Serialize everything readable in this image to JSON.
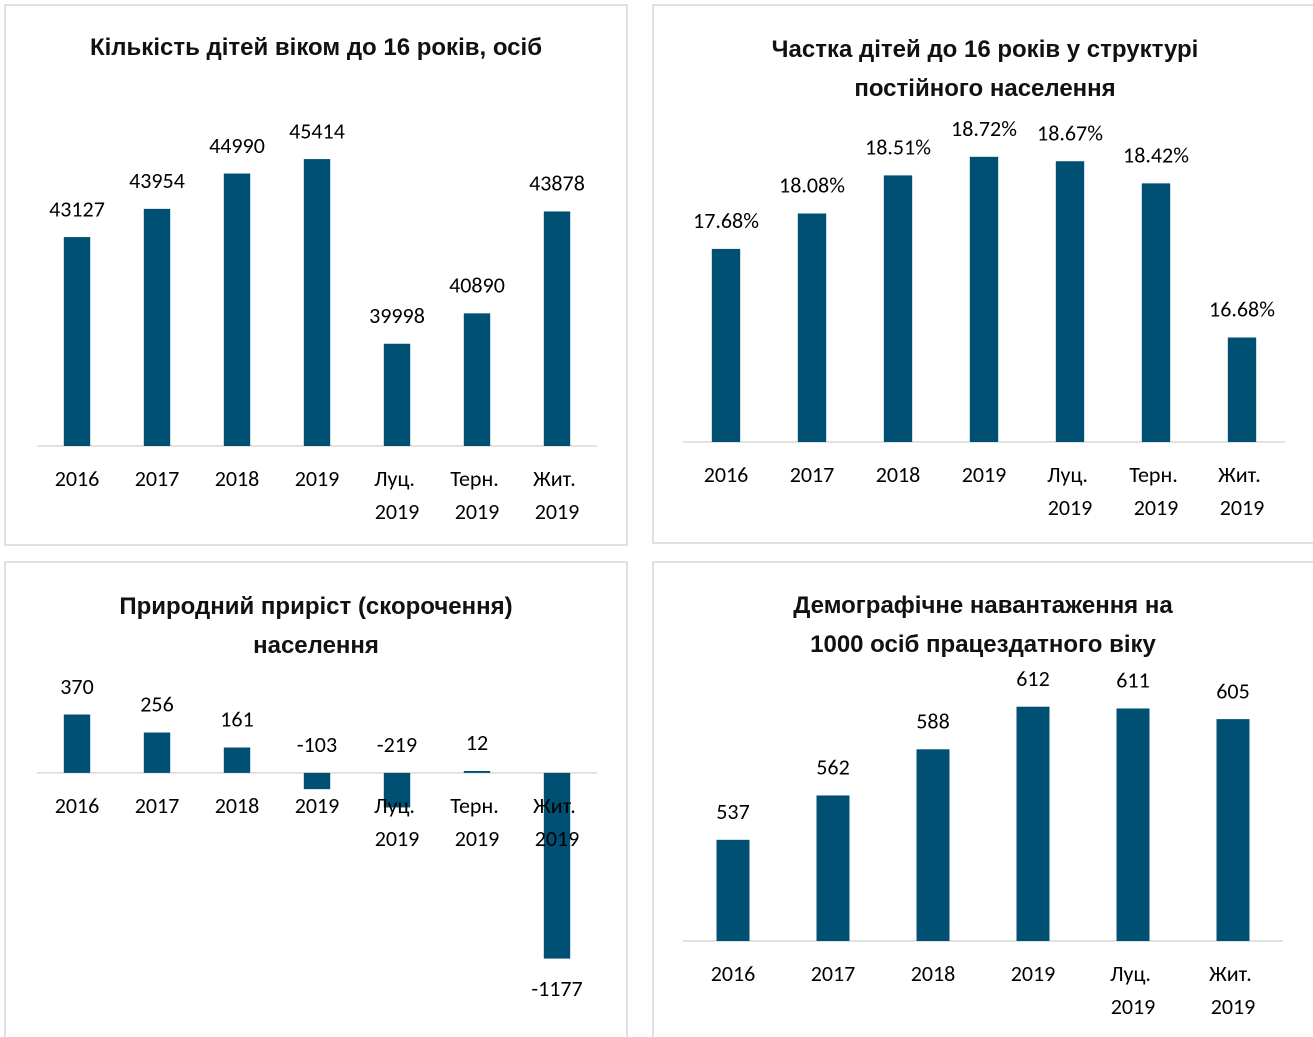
{
  "chart_data": [
    {
      "type": "bar",
      "title": "Кількість дітей віком до 16 років, осіб",
      "categories": [
        "2016",
        "2017",
        "2018",
        "2019",
        "Луц. 2019",
        "Терн. 2019",
        "Жит. 2019"
      ],
      "values": [
        43127,
        43954,
        44990,
        45414,
        39998,
        40890,
        43878
      ],
      "color": "#005073",
      "ylim": [
        37000,
        47000
      ]
    },
    {
      "type": "bar",
      "title": "Частка дітей до 16 років у структурі постійного населення",
      "categories": [
        "2016",
        "2017",
        "2018",
        "2019",
        "Луц. 2019",
        "Терн. 2019",
        "Жит. 2019"
      ],
      "values": [
        17.68,
        18.08,
        18.51,
        18.72,
        18.67,
        18.42,
        16.68
      ],
      "value_labels": [
        "17.68%",
        "18.08%",
        "18.51%",
        "18.72%",
        "18.67%",
        "18.42%",
        "16.68%"
      ],
      "color": "#005073",
      "ylim": [
        15.5,
        19
      ]
    },
    {
      "type": "bar",
      "title": "Природний приріст (скорочення) населення",
      "categories": [
        "2016",
        "2017",
        "2018",
        "2019",
        "Луц. 2019",
        "Терн. 2019",
        "Жит. 2019"
      ],
      "values": [
        370,
        256,
        161,
        -103,
        -219,
        12,
        -1177
      ],
      "color": "#005073",
      "ylim": [
        -1300,
        500
      ]
    },
    {
      "type": "bar",
      "title": "Демографічне навантаження на 1000 осіб працездатного віку",
      "categories": [
        "2016",
        "2017",
        "2018",
        "2019",
        "Луц. 2019",
        "Жит. 2019"
      ],
      "values": [
        537,
        562,
        588,
        612,
        611,
        605
      ],
      "color": "#005073",
      "ylim": [
        480,
        640
      ]
    }
  ]
}
